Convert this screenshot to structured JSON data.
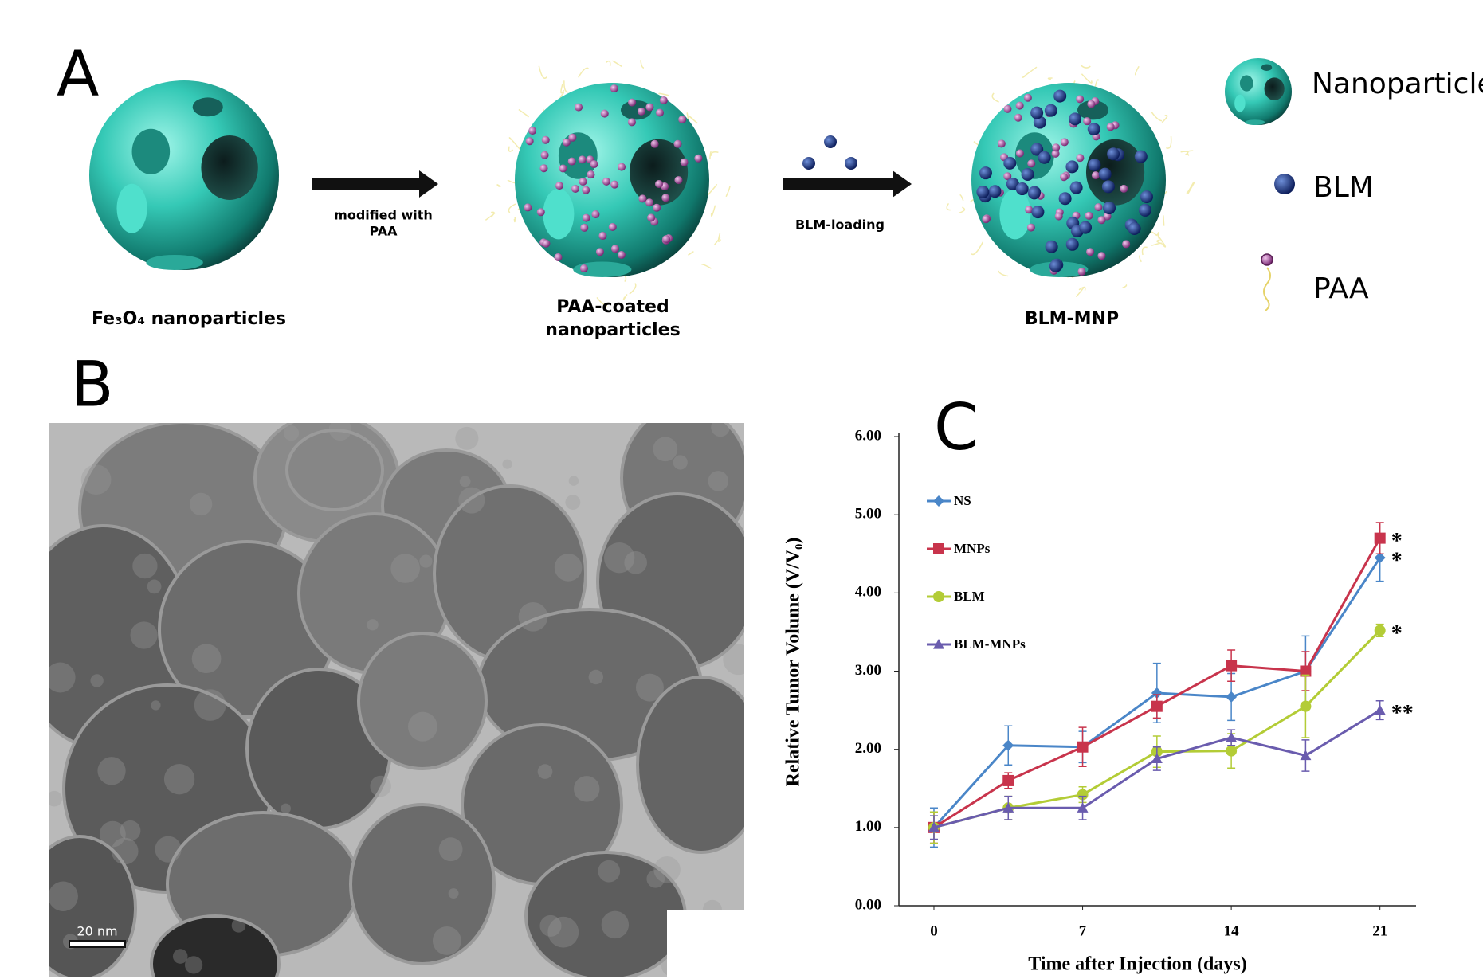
{
  "panel_a": {
    "label": "A",
    "arrow1_label": [
      "modified with",
      "PAA"
    ],
    "arrow2_label": "BLM-loading",
    "captions": [
      "Fe₃O₄ nanoparticles",
      [
        "PAA-coated",
        "nanoparticles"
      ],
      "BLM-MNP"
    ],
    "legend": [
      "Nanoparticle",
      "BLM",
      "PAA"
    ]
  },
  "panel_b": {
    "label": "B",
    "scale_bar": "20 nm"
  },
  "chart_data": {
    "type": "line",
    "panel_label": "C",
    "x_label": "Time after Injection (days)",
    "y_label": "Relative Tumor Volume (V/V₀)",
    "x": [
      0,
      3.5,
      7,
      10.5,
      14,
      17.5,
      21
    ],
    "xlim": [
      -1.65,
      22.7
    ],
    "xticks": [
      0,
      7,
      14,
      21
    ],
    "ylim": [
      0,
      6
    ],
    "yticks": [
      {
        "value": 0,
        "label": "0.00"
      },
      {
        "value": 1,
        "label": "1.00"
      },
      {
        "value": 2,
        "label": "2.00"
      },
      {
        "value": 3,
        "label": "3.00"
      },
      {
        "value": 4,
        "label": "4.00"
      },
      {
        "value": 5,
        "label": "5.00"
      },
      {
        "value": 6,
        "label": "6.00"
      }
    ],
    "legend_position": "upper left",
    "series": [
      {
        "name": "NS",
        "color": "#4a86c8",
        "marker": "diamond",
        "values": [
          1.0,
          2.05,
          2.03,
          2.72,
          2.67,
          3.0,
          4.45
        ],
        "errors": [
          0.25,
          0.25,
          0.2,
          0.38,
          0.3,
          0.45,
          0.3
        ],
        "annotation": "*"
      },
      {
        "name": "MNPs",
        "color": "#c8344c",
        "marker": "square",
        "values": [
          1.0,
          1.6,
          2.03,
          2.55,
          3.07,
          3.0,
          4.7
        ],
        "errors": [
          0.2,
          0.1,
          0.25,
          0.15,
          0.2,
          0.25,
          0.2
        ],
        "annotation": "*"
      },
      {
        "name": "BLM",
        "color": "#b3cc36",
        "marker": "circle",
        "values": [
          1.0,
          1.25,
          1.42,
          1.97,
          1.98,
          2.55,
          3.52
        ],
        "errors": [
          0.2,
          0.15,
          0.1,
          0.2,
          0.22,
          0.4,
          0.08
        ],
        "annotation": "*"
      },
      {
        "name": "BLM-MNPs",
        "color": "#6a5cae",
        "marker": "triangle",
        "values": [
          1.0,
          1.25,
          1.25,
          1.88,
          2.15,
          1.92,
          2.5
        ],
        "errors": [
          0.15,
          0.15,
          0.15,
          0.15,
          0.1,
          0.2,
          0.12
        ],
        "annotation": "**"
      }
    ]
  }
}
